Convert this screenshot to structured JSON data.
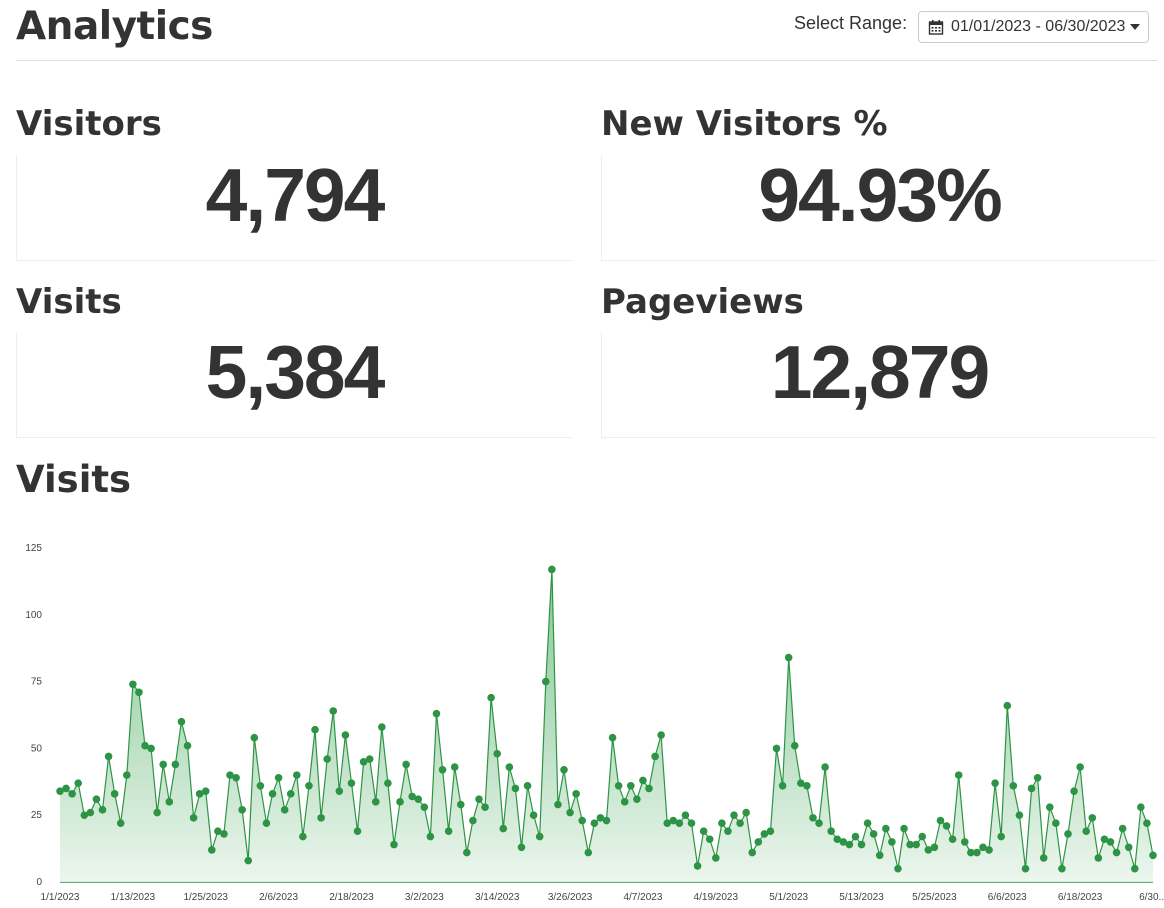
{
  "header": {
    "title": "Analytics",
    "range_label": "Select Range:",
    "range_value": "01/01/2023 - 06/30/2023",
    "icons": [
      "calendar-icon",
      "caret-down-icon"
    ]
  },
  "stats": [
    {
      "label": "Visitors",
      "value": "4,794"
    },
    {
      "label": "New Visitors %",
      "value": "94.93%"
    },
    {
      "label": "Visits",
      "value": "5,384"
    },
    {
      "label": "Pageviews",
      "value": "12,879"
    }
  ],
  "chart_section": {
    "title": "Visits"
  },
  "colors": {
    "line": "#2e9445",
    "fill_top": "#64b878",
    "fill_bottom": "#eaf5ec",
    "text": "#333333"
  },
  "chart_data": {
    "type": "area",
    "ylim": [
      0,
      125
    ],
    "yticks": [
      0,
      25,
      50,
      75,
      100,
      125
    ],
    "xticks": [
      "1/1/2023",
      "1/13/2023",
      "1/25/2023",
      "2/6/2023",
      "2/18/2023",
      "3/2/2023",
      "3/14/2023",
      "3/26/2023",
      "4/7/2023",
      "4/19/2023",
      "5/1/2023",
      "5/13/2023",
      "5/25/2023",
      "6/6/2023",
      "6/18/2023",
      "6/30..."
    ],
    "grid": false,
    "legend": "none",
    "values": [
      34,
      35,
      33,
      37,
      25,
      26,
      31,
      27,
      47,
      33,
      22,
      40,
      74,
      71,
      51,
      50,
      26,
      44,
      30,
      44,
      60,
      51,
      24,
      33,
      34,
      12,
      19,
      18,
      40,
      39,
      27,
      8,
      54,
      36,
      22,
      33,
      39,
      27,
      33,
      40,
      17,
      36,
      57,
      24,
      46,
      64,
      34,
      55,
      37,
      19,
      45,
      46,
      30,
      58,
      37,
      14,
      30,
      44,
      32,
      31,
      28,
      17,
      63,
      42,
      19,
      43,
      29,
      11,
      23,
      31,
      28,
      69,
      48,
      20,
      43,
      35,
      13,
      36,
      25,
      17,
      75,
      117,
      29,
      42,
      26,
      33,
      23,
      11,
      22,
      24,
      23,
      54,
      36,
      30,
      36,
      31,
      38,
      35,
      47,
      55,
      22,
      23,
      22,
      25,
      22,
      6,
      19,
      16,
      9,
      22,
      19,
      25,
      22,
      26,
      11,
      15,
      18,
      19,
      50,
      36,
      84,
      51,
      37,
      36,
      24,
      22,
      43,
      19,
      16,
      15,
      14,
      17,
      14,
      22,
      18,
      10,
      20,
      15,
      5,
      20,
      14,
      14,
      17,
      12,
      13,
      23,
      21,
      16,
      40,
      15,
      11,
      11,
      13,
      12,
      37,
      17,
      66,
      36,
      25,
      5,
      35,
      39,
      9,
      28,
      22,
      5,
      18,
      34,
      43,
      19,
      24,
      9,
      16,
      15,
      11,
      20,
      13,
      5,
      28,
      22,
      10
    ]
  }
}
